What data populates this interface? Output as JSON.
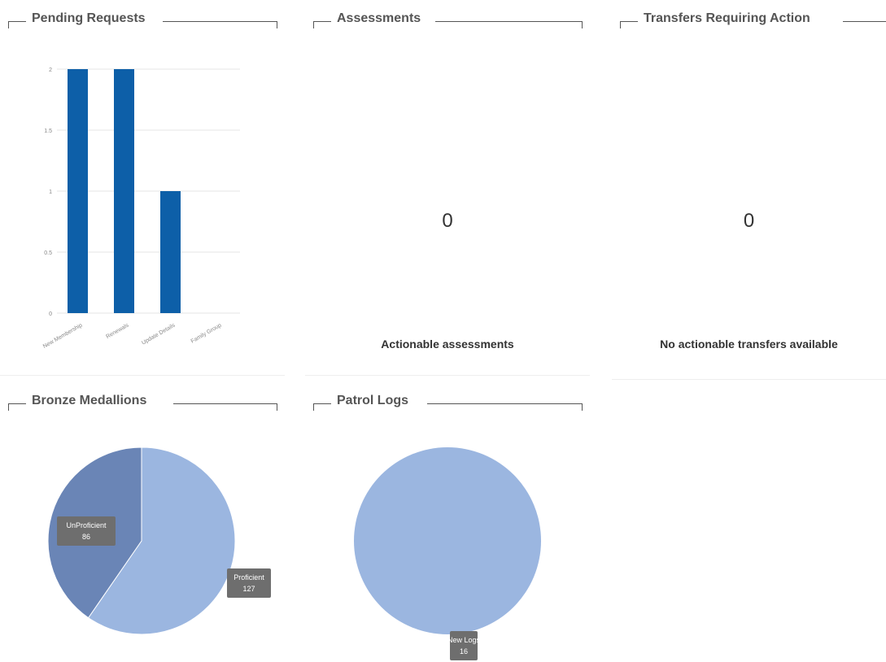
{
  "cards": {
    "pending_requests": {
      "title": "Pending Requests"
    },
    "assessments": {
      "title": "Assessments",
      "count": "0",
      "footer": "Actionable assessments"
    },
    "transfers": {
      "title": "Transfers Requiring Action",
      "count": "0",
      "footer": "No actionable transfers available"
    },
    "bronze_medallions": {
      "title": "Bronze Medallions"
    },
    "patrol_logs": {
      "title": "Patrol Logs"
    }
  },
  "colors": {
    "bar": "#0d5fa8",
    "pie_light": "#9bb6e0",
    "pie_dark": "#6a85b6",
    "tooltip_bg": "#6e6e6e",
    "grid": "#e6e6e6"
  },
  "chart_data": [
    {
      "type": "bar",
      "title": "Pending Requests",
      "categories": [
        "New Membership",
        "Renewals",
        "Update Details",
        "Family Group"
      ],
      "values": [
        2,
        2,
        1,
        0
      ],
      "ylim": [
        0,
        2
      ],
      "yticks": [
        "0",
        "0.5",
        "1",
        "1.5",
        "2"
      ],
      "xlabel": "",
      "ylabel": "",
      "grid": true
    },
    {
      "type": "pie",
      "title": "Bronze Medallions",
      "labels": [
        "Proficient",
        "UnProficient"
      ],
      "values": [
        127,
        86
      ]
    },
    {
      "type": "pie",
      "title": "Patrol Logs",
      "labels": [
        "New Logs"
      ],
      "values": [
        16
      ]
    }
  ]
}
